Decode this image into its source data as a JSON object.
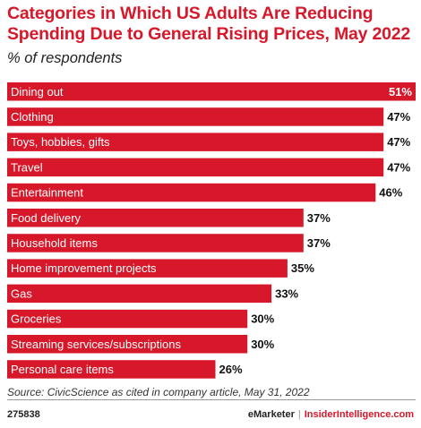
{
  "header": {
    "title": "Categories in Which US Adults Are Reducing Spending Due to General Rising Prices, May 2022",
    "subtitle": "% of respondents"
  },
  "footer": {
    "source": "Source: CivicScience as cited in company article, May 31, 2022",
    "chart_id": "275838",
    "brand_name": "eMarketer",
    "brand_separator": "|",
    "brand_site": "InsiderIntelligence.com"
  },
  "colors": {
    "bar": "#d7182a",
    "bar_label": "#ffffff",
    "value_label": "#111111"
  },
  "chart_data": {
    "type": "bar",
    "orientation": "horizontal",
    "title": "Categories in Which US Adults Are Reducing Spending Due to General Rising Prices, May 2022",
    "subtitle": "% of respondents",
    "categories": [
      "Dining out",
      "Clothing",
      "Toys, hobbies, gifts",
      "Travel",
      "Entertainment",
      "Food delivery",
      "Household items",
      "Home improvement projects",
      "Gas",
      "Groceries",
      "Streaming services/subscriptions",
      "Personal care items"
    ],
    "values": [
      51,
      47,
      47,
      47,
      46,
      37,
      37,
      35,
      33,
      30,
      30,
      26
    ],
    "value_labels": [
      "51%",
      "47%",
      "47%",
      "47%",
      "46%",
      "37%",
      "37%",
      "35%",
      "33%",
      "30%",
      "30%",
      "26%"
    ],
    "unit": "%",
    "xlim": [
      0,
      51
    ],
    "grid": false,
    "legend": "none"
  }
}
